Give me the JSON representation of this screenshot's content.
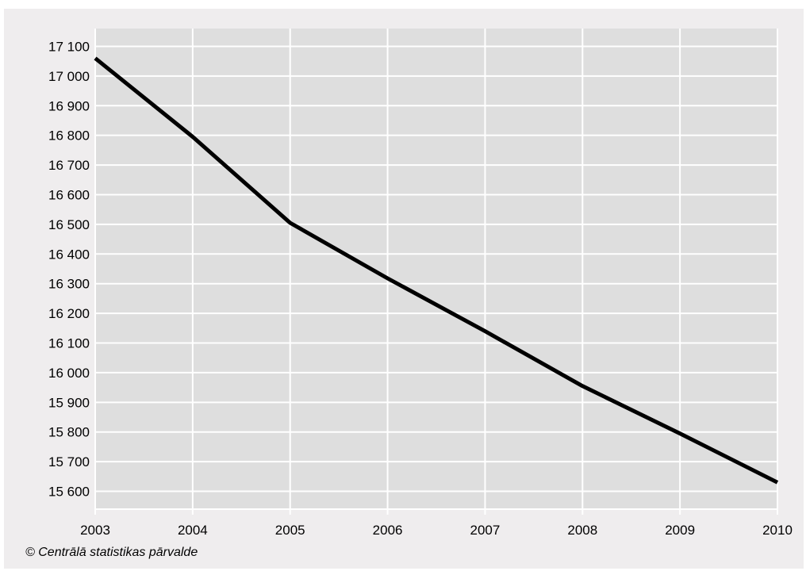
{
  "chart_data": {
    "type": "line",
    "x": [
      "2003",
      "2004",
      "2005",
      "2006",
      "2007",
      "2008",
      "2009",
      "2010"
    ],
    "series": [
      {
        "values": [
          17060,
          16795,
          16505,
          16318,
          16140,
          15955,
          15795,
          15630
        ]
      }
    ],
    "yticks": [
      15600,
      15700,
      15800,
      15900,
      16000,
      16100,
      16200,
      16300,
      16400,
      16500,
      16600,
      16700,
      16800,
      16900,
      17000,
      17100
    ],
    "ytick_labels": [
      "15 600",
      "15 700",
      "15 800",
      "15 900",
      "16 000",
      "16 100",
      "16 200",
      "16 300",
      "16 400",
      "16 500",
      "16 600",
      "16 700",
      "16 800",
      "16 900",
      "17 000",
      "17 100"
    ],
    "ylim": [
      15540,
      17160
    ],
    "grid": true,
    "colors": {
      "plot_background": "#dedede",
      "frame_background": "#efedee",
      "grid": "#ffffff",
      "line": "#000000"
    }
  },
  "footer": {
    "source_note": "© Centrālā statistikas pārvalde"
  }
}
